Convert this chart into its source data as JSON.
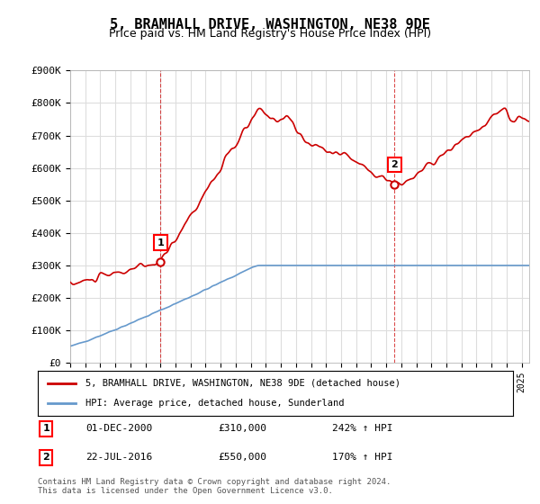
{
  "title": "5, BRAMHALL DRIVE, WASHINGTON, NE38 9DE",
  "subtitle": "Price paid vs. HM Land Registry's House Price Index (HPI)",
  "ylabel_ticks": [
    "£0",
    "£100K",
    "£200K",
    "£300K",
    "£400K",
    "£500K",
    "£600K",
    "£700K",
    "£800K",
    "£900K"
  ],
  "ytick_values": [
    0,
    100000,
    200000,
    300000,
    400000,
    500000,
    600000,
    700000,
    800000,
    900000
  ],
  "ylim": [
    0,
    900000
  ],
  "xlim_start": 1995.0,
  "xlim_end": 2025.5,
  "red_line_color": "#cc0000",
  "blue_line_color": "#6699cc",
  "point1_x": 2001.0,
  "point1_y": 310000,
  "point1_label": "1",
  "point2_x": 2016.55,
  "point2_y": 550000,
  "point2_label": "2",
  "legend_entries": [
    "5, BRAMHALL DRIVE, WASHINGTON, NE38 9DE (detached house)",
    "HPI: Average price, detached house, Sunderland"
  ],
  "annotation1_date": "01-DEC-2000",
  "annotation1_price": "£310,000",
  "annotation1_hpi": "242% ↑ HPI",
  "annotation2_date": "22-JUL-2016",
  "annotation2_price": "£550,000",
  "annotation2_hpi": "170% ↑ HPI",
  "footer": "Contains HM Land Registry data © Crown copyright and database right 2024.\nThis data is licensed under the Open Government Licence v3.0.",
  "background_color": "#ffffff",
  "grid_color": "#dddddd"
}
